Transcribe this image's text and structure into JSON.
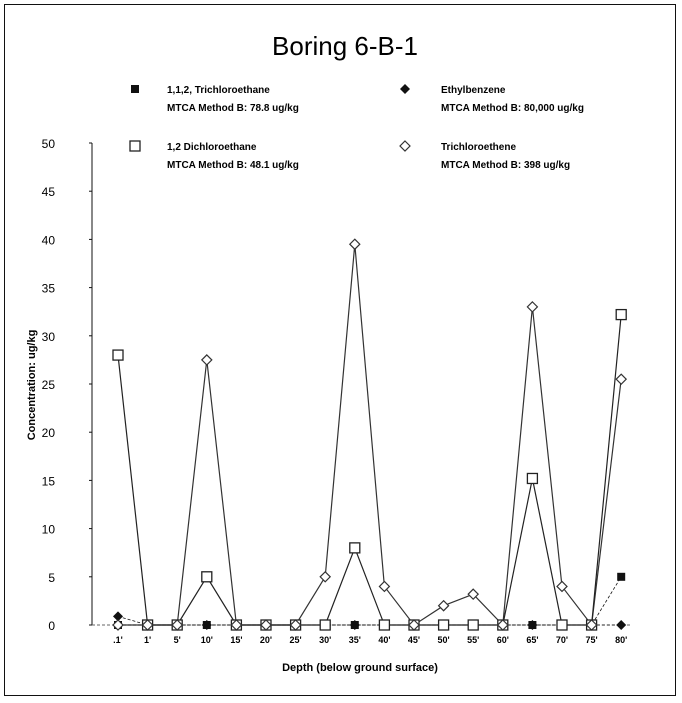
{
  "chart_data": {
    "type": "line",
    "title": "Boring 6-B-1",
    "xlabel": "Depth (below ground surface)",
    "ylabel": "Concentration: ug/kg",
    "ylim": [
      0,
      50
    ],
    "yticks": [
      0,
      5,
      10,
      15,
      20,
      25,
      30,
      35,
      40,
      45,
      50
    ],
    "categories": [
      ".1'",
      "1'",
      "5'",
      "10'",
      "15'",
      "20'",
      "25'",
      "30'",
      "35'",
      "40'",
      "45'",
      "50'",
      "55'",
      "60'",
      "65'",
      "70'",
      "75'",
      "80'"
    ],
    "grid": false,
    "legend_position": "top",
    "series": [
      {
        "name": "1,1,2, Trichloroethane",
        "note": "MTCA Method B:  78.8 ug/kg",
        "marker": "square-filled",
        "color": "#111111",
        "values": [
          0,
          0,
          0,
          0,
          0,
          0,
          0,
          0,
          0,
          0,
          0,
          0,
          0,
          0,
          0,
          0,
          0,
          5
        ]
      },
      {
        "name": "1,2 Dichloroethane",
        "note": "MTCA Method B:  48.1 ug/kg",
        "marker": "square-open",
        "color": "#222222",
        "values": [
          28,
          0,
          0,
          5,
          0,
          0,
          0,
          0,
          8,
          0,
          0,
          0,
          0,
          0,
          15.2,
          0,
          0,
          32.2
        ]
      },
      {
        "name": "Ethylbenzene",
        "note": "MTCA Method B:  80,000 ug/kg",
        "marker": "diamond-filled",
        "color": "#111111",
        "values": [
          0.9,
          0,
          0,
          0,
          0,
          0,
          0,
          0,
          0,
          0,
          0,
          0,
          0,
          0,
          0,
          0,
          0,
          0
        ]
      },
      {
        "name": "Trichloroethene",
        "note": "MTCA Method B:  398 ug/kg",
        "marker": "diamond-open",
        "color": "#333333",
        "values": [
          0,
          0,
          0,
          27.5,
          0,
          0,
          0,
          5,
          39.5,
          4,
          0,
          2,
          3.2,
          0,
          33,
          4,
          0,
          25.5
        ]
      }
    ]
  }
}
